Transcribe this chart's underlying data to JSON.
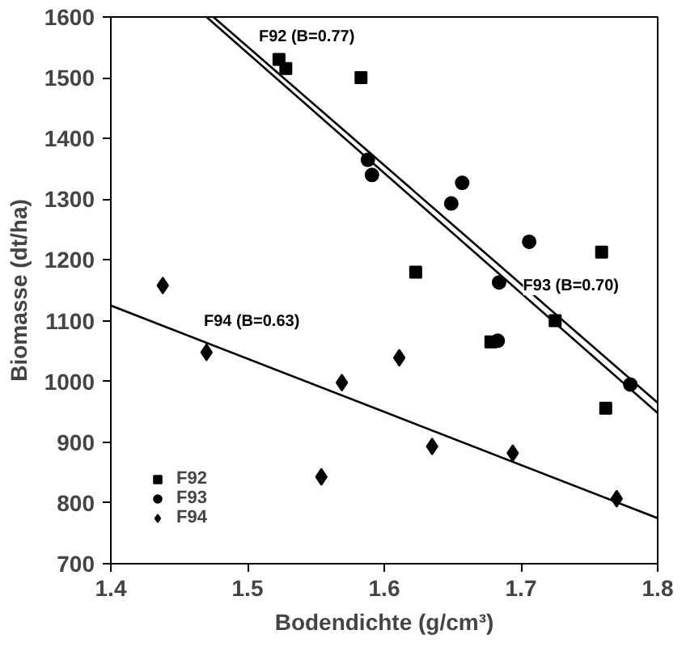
{
  "chart_data": {
    "type": "scatter",
    "xlabel": "Bodendichte (g/cm³)",
    "ylabel": "Biomasse (dt/ha)",
    "xlim": [
      1.4,
      1.8
    ],
    "ylim": [
      700,
      1600
    ],
    "xticks": [
      1.4,
      1.5,
      1.6,
      1.7,
      1.8
    ],
    "yticks": [
      700,
      800,
      900,
      1000,
      1100,
      1200,
      1300,
      1400,
      1500,
      1600
    ],
    "grid": false,
    "legend": "bottom left",
    "series": [
      {
        "name": "F92",
        "marker": "square",
        "color": "#000000",
        "x": [
          1.523,
          1.528,
          1.583,
          1.623,
          1.678,
          1.725,
          1.759,
          1.762
        ],
        "values": [
          1530,
          1515,
          1500,
          1180,
          1065,
          1100,
          1213,
          956
        ]
      },
      {
        "name": "F93",
        "marker": "circle",
        "color": "#000000",
        "x": [
          1.588,
          1.591,
          1.649,
          1.657,
          1.684,
          1.683,
          1.706,
          1.78
        ],
        "values": [
          1365,
          1340,
          1293,
          1327,
          1163,
          1067,
          1230,
          995
        ]
      },
      {
        "name": "F94",
        "marker": "diamond",
        "color": "#000000",
        "x": [
          1.438,
          1.47,
          1.554,
          1.569,
          1.611,
          1.635,
          1.694,
          1.77
        ],
        "values": [
          1158,
          1048,
          843,
          998,
          1039,
          893,
          882,
          807
        ]
      },
      {
        "name": "F92 (B=0.77)",
        "type": "line",
        "color": "#000000",
        "x": [
          1.475,
          1.8
        ],
        "values": [
          1600,
          965
        ]
      },
      {
        "name": "F93 (B=0.70)",
        "type": "line",
        "color": "#000000",
        "x": [
          1.47,
          1.8
        ],
        "values": [
          1600,
          948
        ]
      },
      {
        "name": "F94 (B=0.63)",
        "type": "line",
        "color": "#000000",
        "x": [
          1.4,
          1.8
        ],
        "values": [
          1125,
          775
        ]
      }
    ]
  }
}
